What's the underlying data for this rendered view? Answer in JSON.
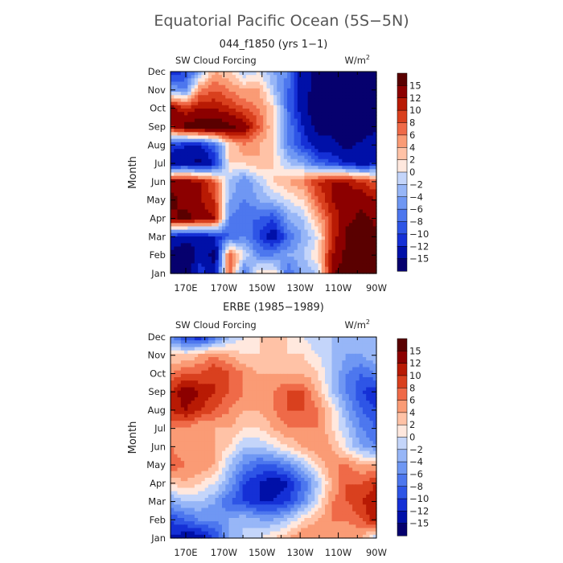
{
  "figure": {
    "title": "Equatorial Pacific Ocean (5S−5N)"
  },
  "chart_data": [
    {
      "type": "heatmap",
      "title": "044_f1850 (yrs 1−1)",
      "left_label": "SW Cloud Forcing",
      "units_base": "W/m",
      "units_exp": "2",
      "ylabel": "Month",
      "x_ticks": [
        "170E",
        "170W",
        "150W",
        "130W",
        "110W",
        "90W"
      ],
      "y_ticks": [
        "Jan",
        "Feb",
        "Mar",
        "Apr",
        "May",
        "Jun",
        "Jul",
        "Aug",
        "Sep",
        "Oct",
        "Nov",
        "Dec"
      ],
      "colorbar_labels": [
        "15",
        "12",
        "10",
        "8",
        "6",
        "4",
        "2",
        "0",
        "−2",
        "−4",
        "−6",
        "−8",
        "−10",
        "−12",
        "−15"
      ],
      "grid": [
        [
          -18,
          -18,
          -10,
          -14,
          8,
          -8,
          2,
          2,
          -8,
          -4,
          -2,
          14,
          18,
          18,
          16
        ],
        [
          -16,
          -18,
          -14,
          -16,
          8,
          0,
          -6,
          -6,
          -4,
          -2,
          2,
          12,
          16,
          18,
          18
        ],
        [
          -12,
          -14,
          -14,
          -12,
          -8,
          -6,
          -10,
          -14,
          -8,
          -4,
          0,
          10,
          16,
          18,
          16
        ],
        [
          14,
          16,
          14,
          12,
          -6,
          -8,
          -8,
          -10,
          -4,
          -2,
          4,
          10,
          14,
          16,
          14
        ],
        [
          16,
          14,
          12,
          10,
          -4,
          -6,
          -4,
          -2,
          0,
          2,
          8,
          12,
          14,
          14,
          12
        ],
        [
          14,
          14,
          12,
          8,
          -2,
          -6,
          -2,
          2,
          4,
          6,
          10,
          12,
          12,
          10,
          8
        ],
        [
          -16,
          -14,
          -16,
          -12,
          2,
          2,
          4,
          2,
          -2,
          -4,
          -8,
          -10,
          -12,
          -14,
          -12
        ],
        [
          -10,
          -12,
          -12,
          -8,
          2,
          6,
          4,
          2,
          -6,
          -10,
          -14,
          -14,
          -16,
          -14,
          -12
        ],
        [
          12,
          16,
          18,
          18,
          16,
          14,
          8,
          2,
          -6,
          -12,
          -16,
          -16,
          -18,
          -18,
          -16
        ],
        [
          14,
          10,
          12,
          12,
          10,
          8,
          6,
          2,
          -8,
          -14,
          -18,
          -18,
          -18,
          -18,
          -16
        ],
        [
          -4,
          -6,
          6,
          8,
          6,
          4,
          4,
          -2,
          -8,
          -14,
          -16,
          -18,
          -18,
          -18,
          -18
        ],
        [
          -12,
          -10,
          -4,
          4,
          2,
          -2,
          0,
          -4,
          -6,
          -14,
          -16,
          -18,
          -18,
          -18,
          -18
        ]
      ]
    },
    {
      "type": "heatmap",
      "title": "ERBE (1985−1989)",
      "left_label": "SW Cloud Forcing",
      "units_base": "W/m",
      "units_exp": "2",
      "ylabel": "Month",
      "x_ticks": [
        "170E",
        "170W",
        "150W",
        "130W",
        "110W",
        "90W"
      ],
      "y_ticks": [
        "Jan",
        "Feb",
        "Mar",
        "Apr",
        "May",
        "Jun",
        "Jul",
        "Aug",
        "Sep",
        "Oct",
        "Nov",
        "Dec"
      ],
      "colorbar_labels": [
        "15",
        "12",
        "10",
        "8",
        "6",
        "4",
        "2",
        "0",
        "−2",
        "−4",
        "−6",
        "−8",
        "−10",
        "−12",
        "−15"
      ],
      "grid": [
        [
          -12,
          -14,
          -14,
          -10,
          -4,
          -2,
          0,
          2,
          4,
          6,
          6,
          6,
          4,
          4,
          -2
        ],
        [
          -10,
          -8,
          -6,
          -6,
          -4,
          -2,
          -4,
          -4,
          -2,
          2,
          4,
          6,
          6,
          8,
          12
        ],
        [
          -4,
          -2,
          -2,
          -4,
          -8,
          -10,
          -12,
          -12,
          -10,
          -6,
          0,
          6,
          8,
          10,
          12
        ],
        [
          2,
          4,
          2,
          0,
          -4,
          -10,
          -12,
          -14,
          -12,
          -8,
          -2,
          4,
          8,
          8,
          10
        ],
        [
          8,
          6,
          6,
          4,
          -2,
          -6,
          -8,
          -8,
          -6,
          -2,
          2,
          6,
          6,
          4,
          4
        ],
        [
          6,
          4,
          4,
          4,
          2,
          -2,
          -2,
          0,
          2,
          4,
          6,
          4,
          0,
          -4,
          -6
        ],
        [
          6,
          6,
          4,
          4,
          4,
          2,
          2,
          4,
          6,
          6,
          6,
          2,
          -2,
          -6,
          -8
        ],
        [
          10,
          12,
          10,
          8,
          6,
          4,
          4,
          6,
          8,
          8,
          6,
          2,
          -4,
          -8,
          -10
        ],
        [
          10,
          14,
          12,
          10,
          8,
          6,
          6,
          6,
          8,
          8,
          4,
          -2,
          -6,
          -10,
          -12
        ],
        [
          6,
          8,
          8,
          10,
          8,
          6,
          4,
          4,
          4,
          4,
          2,
          -2,
          -6,
          -8,
          -6
        ],
        [
          2,
          2,
          4,
          6,
          4,
          2,
          2,
          2,
          2,
          2,
          0,
          -2,
          -4,
          -4,
          -2
        ],
        [
          -6,
          -10,
          -12,
          -8,
          -2,
          0,
          2,
          2,
          2,
          0,
          -2,
          -2,
          -2,
          -2,
          -4
        ]
      ]
    }
  ],
  "palette": {
    "levels": [
      -15,
      -12,
      -10,
      -8,
      -6,
      -4,
      -2,
      0,
      2,
      4,
      6,
      8,
      10,
      12,
      15
    ],
    "colors": [
      "#06006e",
      "#0010a8",
      "#1530d6",
      "#2e55e6",
      "#4d77ee",
      "#6f97f3",
      "#97b6f7",
      "#c4d5fa",
      "#ffe8de",
      "#ffc2a6",
      "#fa9b75",
      "#ef6a48",
      "#d9401e",
      "#b81a04",
      "#8c0000",
      "#5a0000"
    ]
  }
}
